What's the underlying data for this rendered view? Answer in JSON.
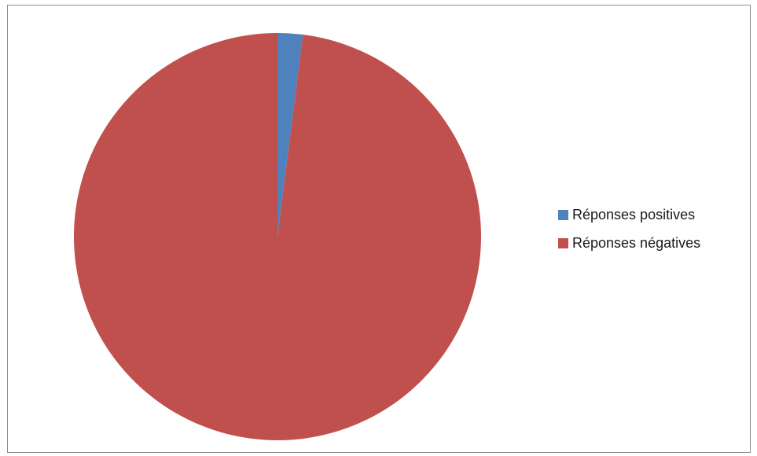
{
  "chart_data": {
    "type": "pie",
    "categories": [
      "Réponses positives",
      "Réponses négatives"
    ],
    "values": [
      2,
      98
    ],
    "colors": [
      "#4f81bd",
      "#c0504d"
    ],
    "legend_position": "right"
  }
}
